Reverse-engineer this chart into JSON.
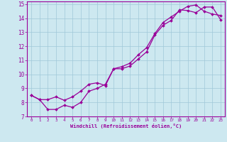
{
  "xlabel": "Windchill (Refroidissement éolien,°C)",
  "bg_color": "#cde8f0",
  "line_color": "#990099",
  "grid_color": "#a0c8d8",
  "xlim": [
    -0.5,
    23.5
  ],
  "ylim": [
    7,
    15.2
  ],
  "xticks": [
    0,
    1,
    2,
    3,
    4,
    5,
    6,
    7,
    8,
    9,
    10,
    11,
    12,
    13,
    14,
    15,
    16,
    17,
    18,
    19,
    20,
    21,
    22,
    23
  ],
  "yticks": [
    7,
    8,
    9,
    10,
    11,
    12,
    13,
    14,
    15
  ],
  "line1_x": [
    0,
    1,
    2,
    3,
    4,
    5,
    6,
    7,
    8,
    9,
    10,
    11,
    12,
    13,
    14,
    15,
    16,
    17,
    18,
    19,
    20,
    21,
    22,
    23
  ],
  "line1_y": [
    8.5,
    8.2,
    7.5,
    7.5,
    7.8,
    7.65,
    8.0,
    8.8,
    9.0,
    9.3,
    10.4,
    10.4,
    10.6,
    11.1,
    11.6,
    12.8,
    13.5,
    13.85,
    14.6,
    14.55,
    14.4,
    14.8,
    14.8,
    13.9
  ],
  "line2_x": [
    0,
    1,
    2,
    3,
    4,
    5,
    6,
    7,
    8,
    9,
    10,
    11,
    12,
    13,
    14,
    15,
    16,
    17,
    18,
    19,
    20,
    21,
    22,
    23
  ],
  "line2_y": [
    8.5,
    8.2,
    8.2,
    8.4,
    8.15,
    8.4,
    8.8,
    9.3,
    9.4,
    9.2,
    10.4,
    10.55,
    10.8,
    11.4,
    11.9,
    12.9,
    13.7,
    14.1,
    14.5,
    14.85,
    14.95,
    14.5,
    14.3,
    14.2
  ]
}
